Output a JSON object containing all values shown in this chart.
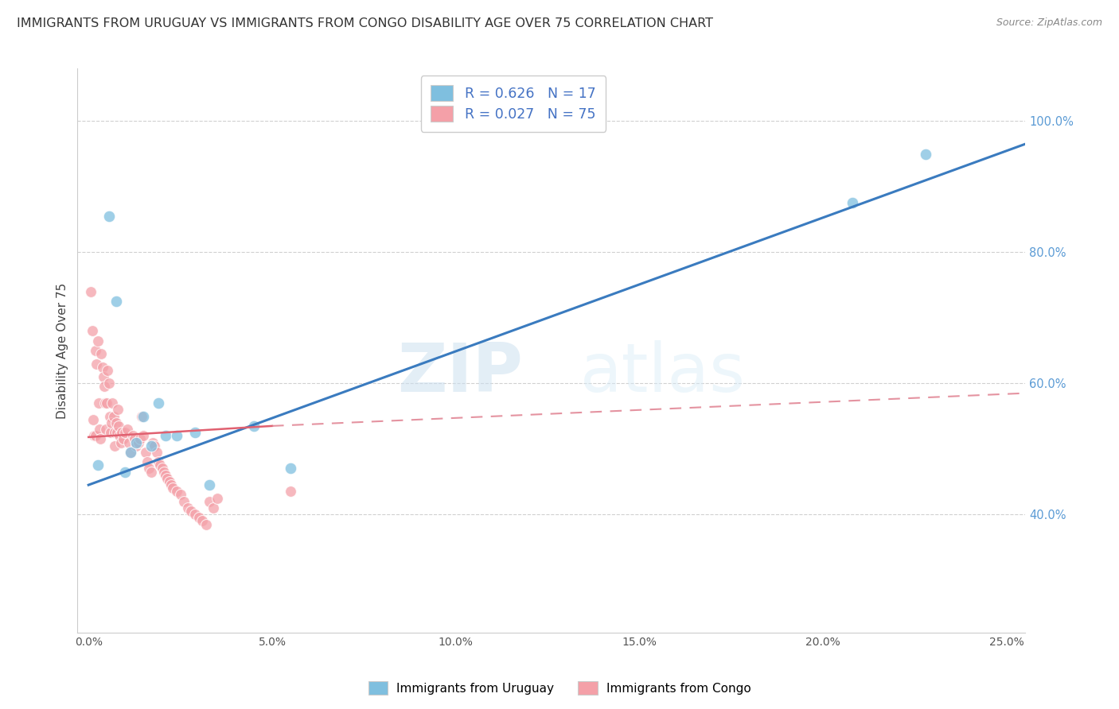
{
  "title": "IMMIGRANTS FROM URUGUAY VS IMMIGRANTS FROM CONGO DISABILITY AGE OVER 75 CORRELATION CHART",
  "source": "Source: ZipAtlas.com",
  "ylabel": "Disability Age Over 75",
  "x_tick_labels": [
    "0.0%",
    "5.0%",
    "10.0%",
    "15.0%",
    "20.0%",
    "25.0%"
  ],
  "x_tick_values": [
    0.0,
    5.0,
    10.0,
    15.0,
    20.0,
    25.0
  ],
  "y_tick_labels_right": [
    "100.0%",
    "80.0%",
    "60.0%",
    "40.0%"
  ],
  "y_tick_values": [
    100.0,
    80.0,
    60.0,
    40.0
  ],
  "xlim": [
    -0.3,
    25.5
  ],
  "ylim": [
    22,
    108
  ],
  "watermark_zip": "ZIP",
  "watermark_atlas": "atlas",
  "color_uruguay": "#7fbfdf",
  "color_congo": "#f4a0a8",
  "color_line_uruguay": "#3a7bbf",
  "color_line_congo": "#e06070",
  "color_dashed": "#e08090",
  "background_color": "#ffffff",
  "grid_color": "#d0d0d0",
  "title_fontsize": 11.5,
  "source_fontsize": 9,
  "uruguay_x": [
    0.25,
    0.55,
    0.75,
    1.0,
    1.15,
    1.3,
    1.5,
    1.7,
    1.9,
    2.1,
    2.4,
    2.9,
    3.3,
    4.5,
    5.5,
    20.8,
    22.8
  ],
  "uruguay_y": [
    47.5,
    85.5,
    72.5,
    46.5,
    49.5,
    51.0,
    55.0,
    50.5,
    57.0,
    52.0,
    52.0,
    52.5,
    44.5,
    53.5,
    47.0,
    87.5,
    95.0
  ],
  "congo_x": [
    0.05,
    0.1,
    0.12,
    0.15,
    0.18,
    0.2,
    0.22,
    0.25,
    0.28,
    0.3,
    0.32,
    0.35,
    0.38,
    0.4,
    0.42,
    0.45,
    0.48,
    0.5,
    0.52,
    0.55,
    0.58,
    0.6,
    0.62,
    0.65,
    0.68,
    0.7,
    0.72,
    0.75,
    0.78,
    0.8,
    0.82,
    0.85,
    0.88,
    0.9,
    0.95,
    1.0,
    1.05,
    1.1,
    1.15,
    1.2,
    1.25,
    1.3,
    1.35,
    1.4,
    1.45,
    1.5,
    1.55,
    1.6,
    1.65,
    1.7,
    1.75,
    1.8,
    1.85,
    1.9,
    1.95,
    2.0,
    2.05,
    2.1,
    2.15,
    2.2,
    2.25,
    2.3,
    2.4,
    2.5,
    2.6,
    2.7,
    2.8,
    2.9,
    3.0,
    3.1,
    3.2,
    3.3,
    3.4,
    3.5,
    5.5
  ],
  "congo_y": [
    74.0,
    68.0,
    54.5,
    52.0,
    52.0,
    65.0,
    63.0,
    66.5,
    57.0,
    53.0,
    51.5,
    64.5,
    62.5,
    61.0,
    59.5,
    57.0,
    53.0,
    57.0,
    62.0,
    60.0,
    55.0,
    52.5,
    54.0,
    57.0,
    55.0,
    52.5,
    50.5,
    54.0,
    52.5,
    56.0,
    53.5,
    52.0,
    51.0,
    52.5,
    51.5,
    52.5,
    53.0,
    51.0,
    49.5,
    52.0,
    51.5,
    50.5,
    51.0,
    51.5,
    55.0,
    52.0,
    49.5,
    48.0,
    47.0,
    46.5,
    51.0,
    50.5,
    49.5,
    48.0,
    47.5,
    47.0,
    46.5,
    46.0,
    45.5,
    45.0,
    44.5,
    44.0,
    43.5,
    43.0,
    42.0,
    41.0,
    40.5,
    40.0,
    39.5,
    39.0,
    38.5,
    42.0,
    41.0,
    42.5,
    43.5
  ],
  "uruguay_line_x0": 0.0,
  "uruguay_line_x1": 25.5,
  "uruguay_line_y0": 44.5,
  "uruguay_line_y1": 96.5,
  "congo_solid_x0": 0.0,
  "congo_solid_x1": 5.0,
  "congo_solid_y0": 51.8,
  "congo_solid_y1": 53.5,
  "congo_dashed_x0": 5.0,
  "congo_dashed_x1": 25.5,
  "congo_dashed_y0": 53.5,
  "congo_dashed_y1": 58.5
}
